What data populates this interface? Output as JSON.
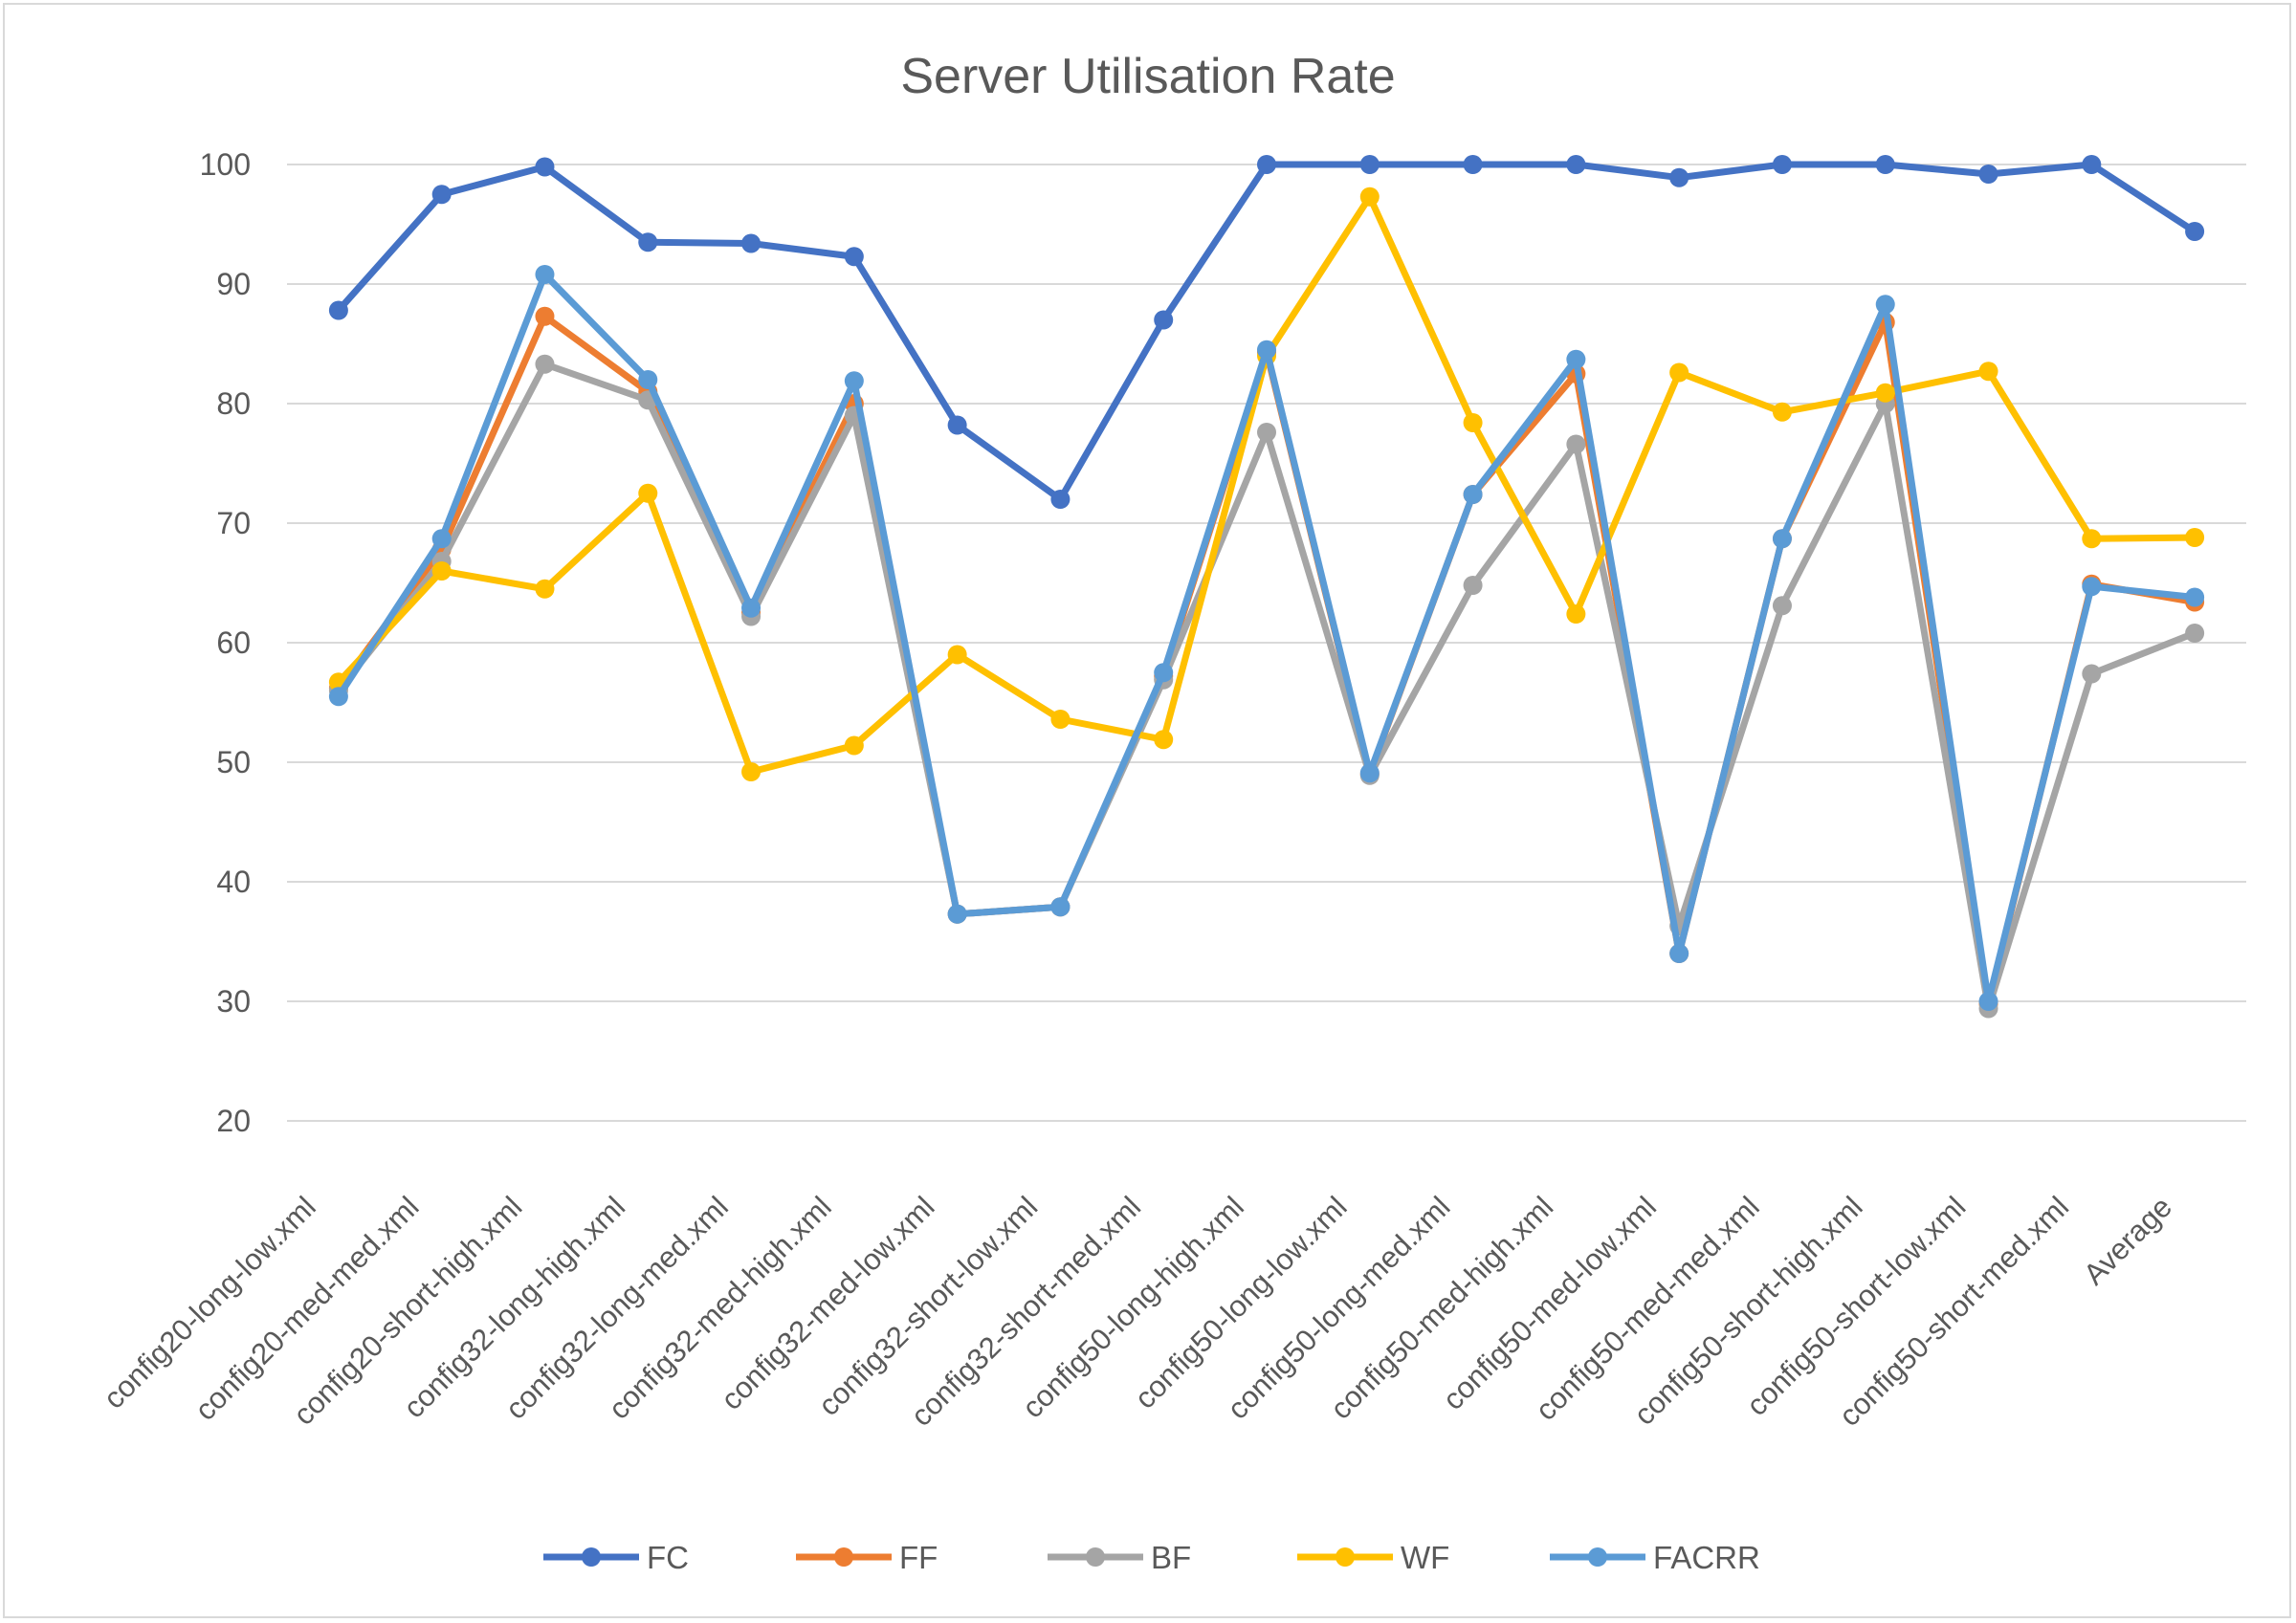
{
  "chart_data": {
    "type": "line",
    "title": "Server Utilisation Rate",
    "xlabel": "",
    "ylabel": "",
    "ylim": [
      20,
      100
    ],
    "yticks": [
      20,
      30,
      40,
      50,
      60,
      70,
      80,
      90,
      100
    ],
    "grid": true,
    "legend_position": "bottom",
    "categories": [
      "config20-long-low.xml",
      "config20-med-med.xml",
      "config20-short-high.xml",
      "config32-long-high.xml",
      "config32-long-med.xml",
      "config32-med-high.xml",
      "config32-med-low.xml",
      "config32-short-low.xml",
      "config32-short-med.xml",
      "config50-long-high.xml",
      "config50-long-low.xml",
      "config50-long-med.xml",
      "config50-med-high.xml",
      "config50-med-low.xml",
      "config50-med-med.xml",
      "config50-short-high.xml",
      "config50-short-low.xml",
      "config50-short-med.xml",
      "Average"
    ],
    "series": [
      {
        "name": "FC",
        "color": "#4472c4",
        "values": [
          87.8,
          97.5,
          99.8,
          93.5,
          93.4,
          92.3,
          78.2,
          72.0,
          87.0,
          100.0,
          100.0,
          100.0,
          100.0,
          98.9,
          100.0,
          100.0,
          99.2,
          100.0,
          94.4
        ]
      },
      {
        "name": "FF",
        "color": "#ed7d31",
        "values": [
          56.2,
          67.8,
          87.3,
          81.0,
          62.5,
          80.0,
          37.3,
          37.9,
          57.2,
          84.3,
          49.0,
          72.4,
          82.5,
          34.0,
          68.7,
          86.8,
          29.8,
          64.9,
          63.4
        ]
      },
      {
        "name": "BF",
        "color": "#a5a5a5",
        "values": [
          56.0,
          66.8,
          83.3,
          80.3,
          62.2,
          79.0,
          37.3,
          37.9,
          56.9,
          77.6,
          48.9,
          64.8,
          76.6,
          36.3,
          63.1,
          80.0,
          29.4,
          57.4,
          60.8
        ]
      },
      {
        "name": "WF",
        "color": "#ffc000",
        "values": [
          56.7,
          66.0,
          64.5,
          72.5,
          49.2,
          51.4,
          59.0,
          53.6,
          51.9,
          84.0,
          97.3,
          78.4,
          62.4,
          82.6,
          79.3,
          80.9,
          82.7,
          68.7,
          68.8
        ]
      },
      {
        "name": "FACRR",
        "color": "#5b9bd5",
        "values": [
          55.5,
          68.7,
          90.8,
          82.0,
          62.9,
          81.9,
          37.3,
          37.9,
          57.5,
          84.5,
          49.1,
          72.4,
          83.7,
          34.0,
          68.7,
          88.3,
          30.0,
          64.7,
          63.8
        ]
      }
    ]
  }
}
